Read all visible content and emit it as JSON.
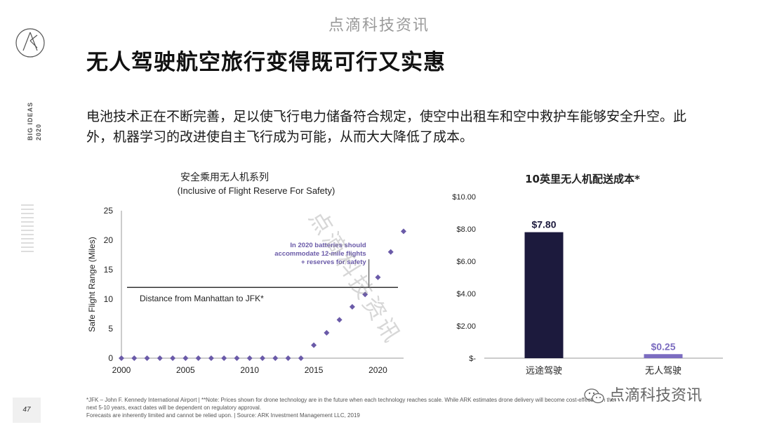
{
  "header": {
    "watermark": "点滴科技资讯",
    "title": "无人驾驶航空旅行变得既可行又实惠",
    "side_label": "BIG IDEAS",
    "side_year": "2020"
  },
  "body_text": "电池技术正在不断完善，足以使飞行电力储备符合规定，使空中出租车和空中救护车能够安全升空。此外，机器学习的改进使自主飞行成为可能，从而大大降低了成本。",
  "page_number": "47",
  "footnote": {
    "line1": "*JFK – John F. Kennedy International Airport  |  **Note: Prices shown for drone technology are in the future when each technology reaches scale. While ARK estimates drone delivery will become cost-effective in the",
    "line2": "next 5-10 years, exact dates will be dependent on regulatory approval.",
    "line3": "Forecasts are inherently limited and cannot be relied upon.  |  Source: ARK Investment Management LLC, 2019"
  },
  "watermark_diagonal": "点滴科技资讯",
  "watermark_bottom": "点滴科技资讯",
  "chart_data": [
    {
      "type": "scatter",
      "title": "安全乘用无人机系列",
      "subtitle": "(Inclusive of Flight Reserve For Safety)",
      "xlabel": "",
      "ylabel": "Safe Flight Range (Miles)",
      "xlim": [
        2000,
        2022
      ],
      "ylim": [
        0,
        25
      ],
      "xticks": [
        2000,
        2005,
        2010,
        2015,
        2020
      ],
      "yticks": [
        0,
        5,
        10,
        15,
        20,
        25
      ],
      "x": [
        2000,
        2001,
        2002,
        2003,
        2004,
        2005,
        2006,
        2007,
        2008,
        2009,
        2010,
        2011,
        2012,
        2013,
        2014,
        2015,
        2016,
        2017,
        2018,
        2019,
        2020,
        2021,
        2022
      ],
      "y": [
        0,
        0,
        0,
        0,
        0,
        0,
        0,
        0,
        0,
        0,
        0,
        0,
        0,
        0,
        0,
        2.2,
        4.3,
        6.5,
        8.7,
        10.8,
        13.7,
        18.0,
        21.5
      ],
      "reference_line": {
        "y": 12,
        "label": "Distance from Manhattan to JFK*"
      },
      "annotation": {
        "x": 2019.3,
        "lines": [
          "In 2020 batteries should",
          "accommodate 12-mile flights",
          "+ reserves for safety"
        ]
      },
      "color": "#6a5aa8"
    },
    {
      "type": "bar",
      "title": "10英里无人机配送成本*",
      "categories": [
        "远途驾驶",
        "无人驾驶"
      ],
      "values": [
        7.8,
        0.25
      ],
      "value_labels": [
        "$7.80",
        "$0.25"
      ],
      "colors": [
        "#1c1a3d",
        "#7b6cc0"
      ],
      "label_colors": [
        "#1c1a3d",
        "#7b6cc0"
      ],
      "ylim": [
        0,
        10
      ],
      "yticks": [
        0,
        2,
        4,
        6,
        8,
        10
      ],
      "ytick_labels": [
        "$-",
        "$2.00",
        "$4.00",
        "$6.00",
        "$8.00",
        "$10.00"
      ]
    }
  ]
}
